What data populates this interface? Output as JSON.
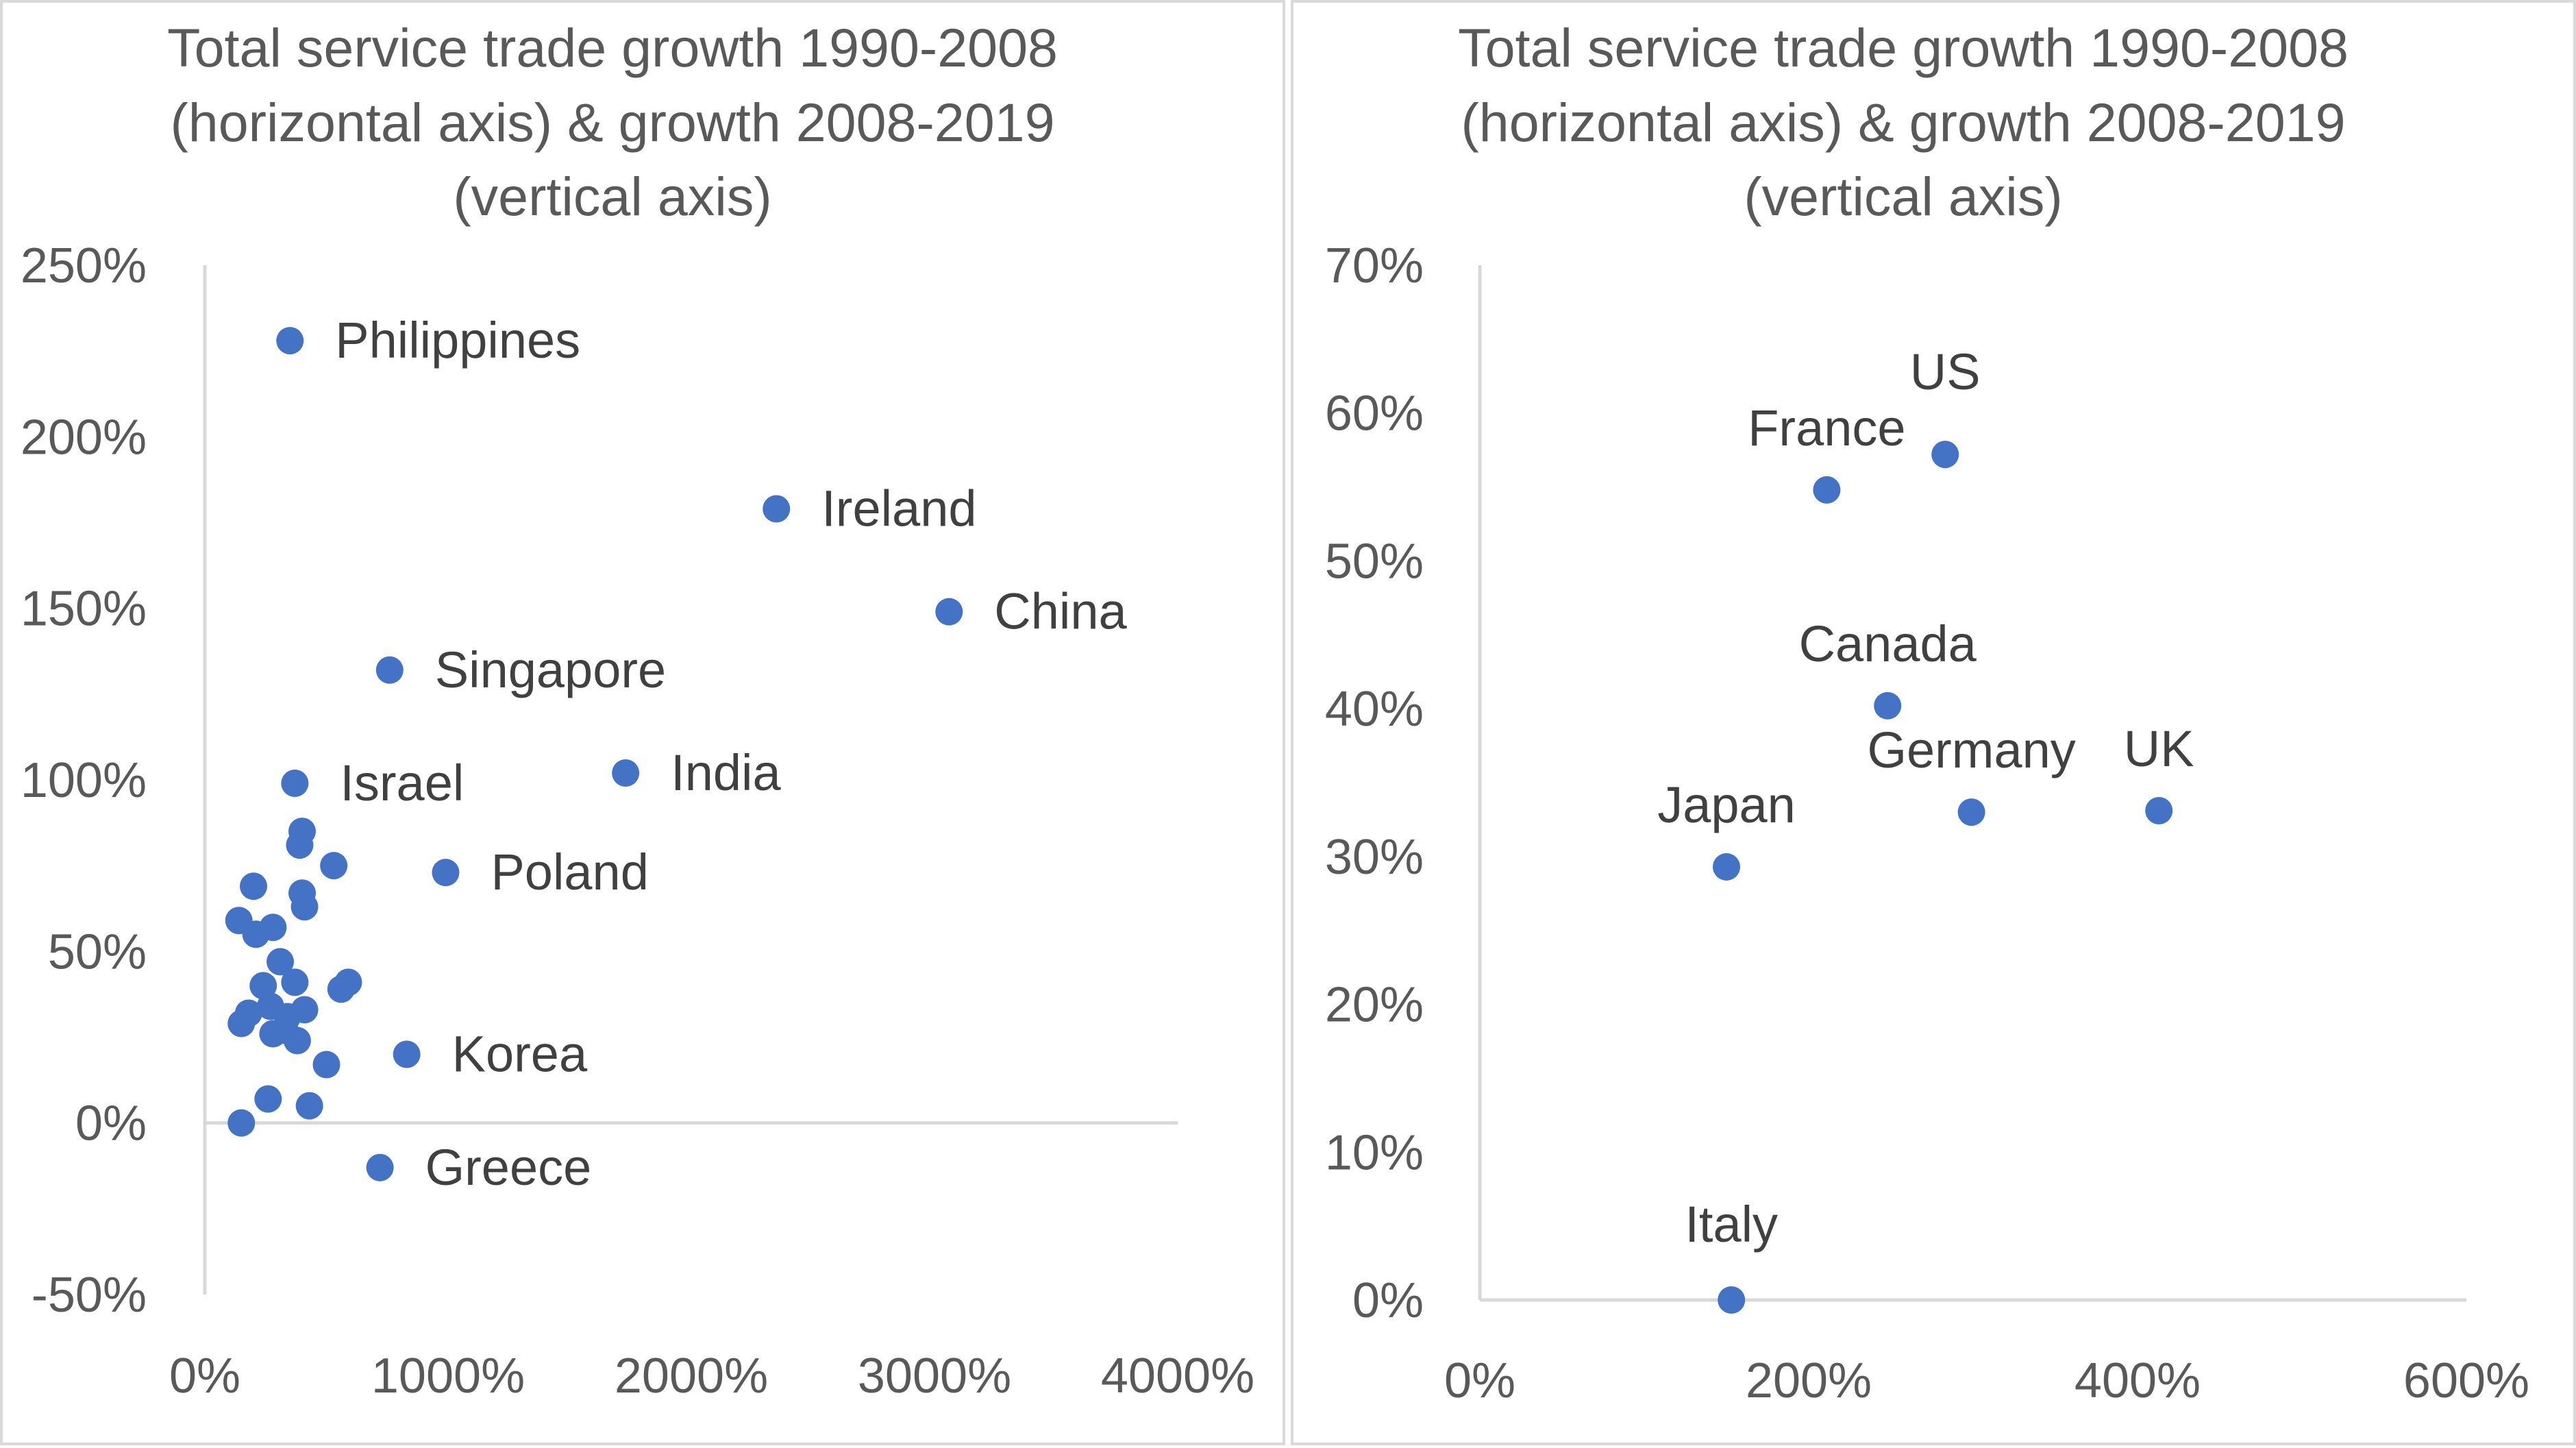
{
  "colors": {
    "marker": "#4472c4",
    "axis": "#d9d9d9",
    "text": "#595959",
    "label": "#404040"
  },
  "chart_data": [
    {
      "type": "scatter",
      "title_lines": [
        "Total service trade growth 1990-2008",
        "(horizontal axis) & growth 2008-2019",
        "(vertical axis)"
      ],
      "xlim": [
        0,
        4000
      ],
      "ylim": [
        -50,
        250
      ],
      "x_ticks": [
        0,
        1000,
        2000,
        3000,
        4000
      ],
      "x_tick_labels": [
        "0%",
        "1000%",
        "2000%",
        "3000%",
        "4000%"
      ],
      "y_ticks": [
        -50,
        0,
        50,
        100,
        150,
        200,
        250
      ],
      "y_tick_labels": [
        "-50%",
        "0%",
        "50%",
        "100%",
        "150%",
        "200%",
        "250%"
      ],
      "points": [
        {
          "x": 350,
          "y": 228,
          "label": "Philippines"
        },
        {
          "x": 2350,
          "y": 179,
          "label": "Ireland"
        },
        {
          "x": 3060,
          "y": 149,
          "label": "China"
        },
        {
          "x": 760,
          "y": 132,
          "label": "Singapore"
        },
        {
          "x": 1730,
          "y": 102,
          "label": "India"
        },
        {
          "x": 370,
          "y": 99,
          "label": "Israel"
        },
        {
          "x": 990,
          "y": 73,
          "label": "Poland"
        },
        {
          "x": 830,
          "y": 20,
          "label": "Korea"
        },
        {
          "x": 720,
          "y": -13,
          "label": "Greece"
        },
        {
          "x": 400,
          "y": 85,
          "label": ""
        },
        {
          "x": 390,
          "y": 81,
          "label": ""
        },
        {
          "x": 530,
          "y": 75,
          "label": ""
        },
        {
          "x": 200,
          "y": 69,
          "label": ""
        },
        {
          "x": 400,
          "y": 67,
          "label": ""
        },
        {
          "x": 410,
          "y": 63,
          "label": ""
        },
        {
          "x": 140,
          "y": 59,
          "label": ""
        },
        {
          "x": 280,
          "y": 57,
          "label": ""
        },
        {
          "x": 210,
          "y": 55,
          "label": ""
        },
        {
          "x": 310,
          "y": 47,
          "label": ""
        },
        {
          "x": 370,
          "y": 41,
          "label": ""
        },
        {
          "x": 590,
          "y": 41,
          "label": ""
        },
        {
          "x": 560,
          "y": 39,
          "label": ""
        },
        {
          "x": 240,
          "y": 40,
          "label": ""
        },
        {
          "x": 270,
          "y": 34,
          "label": ""
        },
        {
          "x": 180,
          "y": 32,
          "label": ""
        },
        {
          "x": 410,
          "y": 33,
          "label": ""
        },
        {
          "x": 340,
          "y": 31,
          "label": ""
        },
        {
          "x": 150,
          "y": 29,
          "label": ""
        },
        {
          "x": 280,
          "y": 26,
          "label": ""
        },
        {
          "x": 330,
          "y": 27,
          "label": ""
        },
        {
          "x": 380,
          "y": 24,
          "label": ""
        },
        {
          "x": 500,
          "y": 17,
          "label": ""
        },
        {
          "x": 260,
          "y": 7,
          "label": ""
        },
        {
          "x": 430,
          "y": 5,
          "label": ""
        },
        {
          "x": 150,
          "y": 0,
          "label": ""
        }
      ]
    },
    {
      "type": "scatter",
      "title_lines": [
        "Total service trade growth 1990-2008",
        "(horizontal axis) & growth 2008-2019",
        "(vertical axis)"
      ],
      "xlim": [
        0,
        600
      ],
      "ylim": [
        0,
        70
      ],
      "x_ticks": [
        0,
        200,
        400,
        600
      ],
      "x_tick_labels": [
        "0%",
        "200%",
        "400%",
        "600%"
      ],
      "y_ticks": [
        0,
        10,
        20,
        30,
        40,
        50,
        60,
        70
      ],
      "y_tick_labels": [
        "0%",
        "10%",
        "20%",
        "30%",
        "40%",
        "50%",
        "60%",
        "70%"
      ],
      "points": [
        {
          "x": 283,
          "y": 57.2,
          "label": "US"
        },
        {
          "x": 211,
          "y": 54.8,
          "label": "France"
        },
        {
          "x": 248,
          "y": 40.2,
          "label": "Canada"
        },
        {
          "x": 299,
          "y": 33.0,
          "label": "Germany"
        },
        {
          "x": 413,
          "y": 33.1,
          "label": "UK"
        },
        {
          "x": 150,
          "y": 29.3,
          "label": "Japan"
        },
        {
          "x": 153,
          "y": 0,
          "label": "Italy"
        }
      ]
    }
  ]
}
